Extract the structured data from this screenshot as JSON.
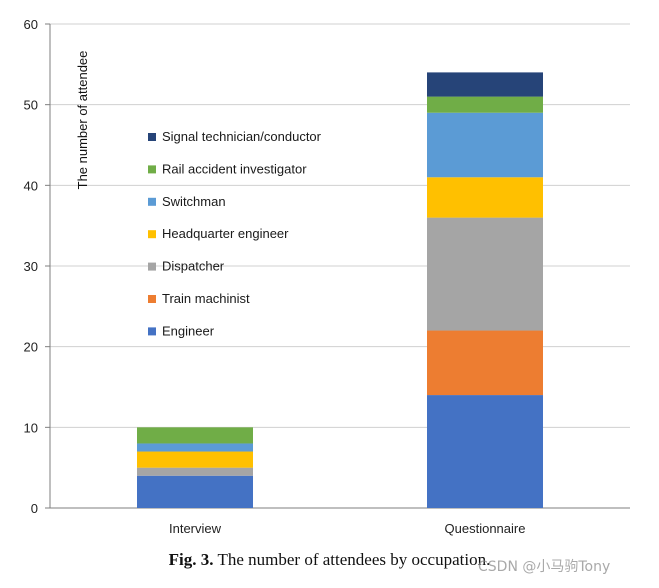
{
  "chart_data": {
    "type": "bar",
    "stacked": true,
    "categories": [
      "Interview",
      "Questionnaire"
    ],
    "series": [
      {
        "name": "Engineer",
        "color": "#4472C4",
        "values": [
          4,
          14
        ]
      },
      {
        "name": "Train machinist",
        "color": "#ED7D31",
        "values": [
          0,
          8
        ]
      },
      {
        "name": "Dispatcher",
        "color": "#A5A5A5",
        "values": [
          1,
          14
        ]
      },
      {
        "name": "Headquarter engineer",
        "color": "#FFC000",
        "values": [
          2,
          5
        ]
      },
      {
        "name": "Switchman",
        "color": "#5B9BD5",
        "values": [
          1,
          8
        ]
      },
      {
        "name": "Rail accident investigator",
        "color": "#70AD47",
        "values": [
          2,
          2
        ]
      },
      {
        "name": "Signal technician/conductor",
        "color": "#264478",
        "values": [
          0,
          3
        ]
      }
    ],
    "ylabel": "The number of attendee",
    "xlabel": "",
    "title": "",
    "ylim": [
      0,
      60
    ],
    "yticks": [
      "0",
      "10",
      "20",
      "30",
      "40",
      "50",
      "60"
    ],
    "grid": true,
    "legend": "upper-left, inside plot, reverse series order"
  },
  "caption": {
    "label": "Fig. 3.",
    "text": " The number of attendees by occupation."
  },
  "watermark": "CSDN @小马驹Tony"
}
